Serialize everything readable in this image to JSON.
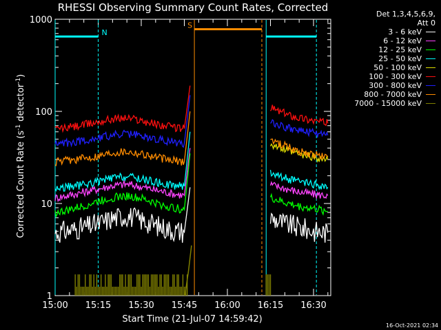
{
  "chart_data": {
    "type": "line",
    "title": "RHESSI Observing Summary Count Rates, Corrected",
    "xlabel": "Start Time (21-Jul-07 14:59:42)",
    "ylabel_pre": "Corrected Count Rate (s",
    "ylabel_sup1": "-1",
    "ylabel_mid": " detector",
    "ylabel_sup2": "-1",
    "ylabel_post": ")",
    "y_scale": "log",
    "ylim": [
      1,
      1000
    ],
    "xlim": [
      "15:00",
      "16:36"
    ],
    "x_tick_labels": [
      "15:00",
      "15:15",
      "15:30",
      "15:45",
      "16:00",
      "16:15",
      "16:30"
    ],
    "x_tick_minutes": [
      0,
      15,
      30,
      45,
      60,
      75,
      90
    ],
    "y_tick_labels": [
      "1",
      "10",
      "100",
      "1000"
    ],
    "y_tick_values": [
      1,
      10,
      100,
      1000
    ],
    "timestamp": "16-Oct-2021 02:34",
    "legend_header": [
      "Det 1,3,4,5,6,9,",
      "Att 0"
    ],
    "series": [
      {
        "name": "3 - 6 keV",
        "color": "#ffffff",
        "t": [
          0,
          5,
          10,
          15,
          20,
          25,
          30,
          35,
          40,
          45,
          47,
          48,
          70,
          75,
          80,
          85,
          90,
          95
        ],
        "v": [
          4.8,
          5.1,
          5.5,
          6.0,
          6.9,
          7.4,
          6.6,
          5.8,
          5.2,
          4.9,
          15,
          null,
          null,
          7,
          6,
          5.5,
          5.0,
          4.8
        ]
      },
      {
        "name": "6 - 12 keV",
        "color": "#ff44ff",
        "t": [
          0,
          5,
          10,
          15,
          20,
          25,
          30,
          35,
          40,
          45,
          47,
          48,
          70,
          75,
          80,
          85,
          90,
          95
        ],
        "v": [
          11.5,
          12.3,
          13.3,
          14.4,
          15.6,
          16.2,
          15.2,
          14.0,
          13.0,
          12.2,
          40,
          null,
          null,
          16,
          14.6,
          13.3,
          12.6,
          12.2
        ]
      },
      {
        "name": "12 - 25 keV",
        "color": "#00ff00",
        "t": [
          0,
          5,
          10,
          15,
          20,
          25,
          30,
          35,
          40,
          45,
          47,
          48,
          70,
          75,
          80,
          85,
          90,
          95
        ],
        "v": [
          7.9,
          8.5,
          9.4,
          10.6,
          11.6,
          12.1,
          11.3,
          10.1,
          9.1,
          8.6,
          35,
          null,
          null,
          11.5,
          10.2,
          9.3,
          8.8,
          8.2
        ]
      },
      {
        "name": "25 - 50 keV",
        "color": "#00ffff",
        "t": [
          0,
          5,
          10,
          15,
          20,
          25,
          30,
          35,
          40,
          45,
          47,
          48,
          70,
          75,
          80,
          85,
          90,
          95
        ],
        "v": [
          14.5,
          15.2,
          16.0,
          17.3,
          18.9,
          19.6,
          18.5,
          17.0,
          15.9,
          15.4,
          60,
          null,
          null,
          22,
          19,
          17,
          16,
          15
        ]
      },
      {
        "name": "50 - 100 keV",
        "color": "#dddd00",
        "t": [
          0,
          5,
          10,
          15,
          20,
          25,
          30,
          35,
          40,
          45,
          47,
          48,
          70,
          75,
          80,
          85,
          90,
          95
        ],
        "v": [
          null,
          null,
          null,
          null,
          null,
          null,
          null,
          null,
          null,
          null,
          null,
          null,
          null,
          45,
          38,
          34,
          32,
          30
        ]
      },
      {
        "name": "100 - 300 keV",
        "color": "#ff1010",
        "t": [
          0,
          5,
          10,
          15,
          20,
          25,
          30,
          35,
          40,
          45,
          47,
          48,
          70,
          75,
          80,
          85,
          90,
          95
        ],
        "v": [
          64,
          67,
          71,
          77,
          83,
          85,
          80,
          73,
          68,
          65,
          190,
          null,
          null,
          110,
          95,
          86,
          80,
          74
        ]
      },
      {
        "name": "300 - 800 keV",
        "color": "#2020ff",
        "t": [
          0,
          5,
          10,
          15,
          20,
          25,
          30,
          35,
          40,
          45,
          47,
          48,
          70,
          75,
          80,
          85,
          90,
          95
        ],
        "v": [
          44,
          46,
          48,
          52,
          55,
          57,
          54,
          50,
          47,
          45,
          150,
          null,
          null,
          78,
          68,
          62,
          58,
          55
        ]
      },
      {
        "name": "800 - 7000 keV",
        "color": "#ff8c00",
        "t": [
          0,
          5,
          10,
          15,
          20,
          25,
          30,
          35,
          40,
          45,
          47,
          48,
          70,
          75,
          80,
          85,
          90,
          95
        ],
        "v": [
          28,
          29.5,
          31,
          33,
          36,
          37,
          35,
          32,
          29.5,
          28.5,
          100,
          null,
          null,
          50,
          42,
          37,
          34,
          32
        ]
      },
      {
        "name": "7000 - 15000 keV",
        "color": "#808000",
        "t": [
          7,
          9,
          11,
          13,
          15,
          17,
          19,
          21,
          23,
          25,
          27,
          29,
          31,
          33,
          35,
          37,
          39,
          41,
          43,
          45,
          46
        ],
        "v": [
          1.7,
          1,
          1.7,
          1,
          1.7,
          1.7,
          1.7,
          1,
          1.7,
          1.7,
          1,
          1.7,
          1.7,
          1,
          1.7,
          1,
          1.7,
          1,
          1,
          1.4,
          3
        ],
        "style": "stepdrops"
      }
    ],
    "intervals": [
      {
        "label": "N",
        "color": "#00ffff",
        "level": 650,
        "start": 0,
        "end": 15
      },
      {
        "label": "",
        "color": "#00ffff",
        "level": 650,
        "start": 73.5,
        "end": 91
      },
      {
        "label": "S",
        "color": "#ff8c00",
        "level": 780,
        "start": 48.5,
        "end": 72
      }
    ],
    "boundaries": [
      {
        "color": "#00ffff",
        "t": 0,
        "dashed": false
      },
      {
        "color": "#00ffff",
        "t": 15,
        "dashed": true
      },
      {
        "color": "#ff8c00",
        "t": 48.5,
        "dashed": false
      },
      {
        "color": "#ff8c00",
        "t": 72,
        "dashed": true
      },
      {
        "color": "#00ffff",
        "t": 73.5,
        "dashed": false
      },
      {
        "color": "#00ffff",
        "t": 91,
        "dashed": true
      }
    ]
  }
}
